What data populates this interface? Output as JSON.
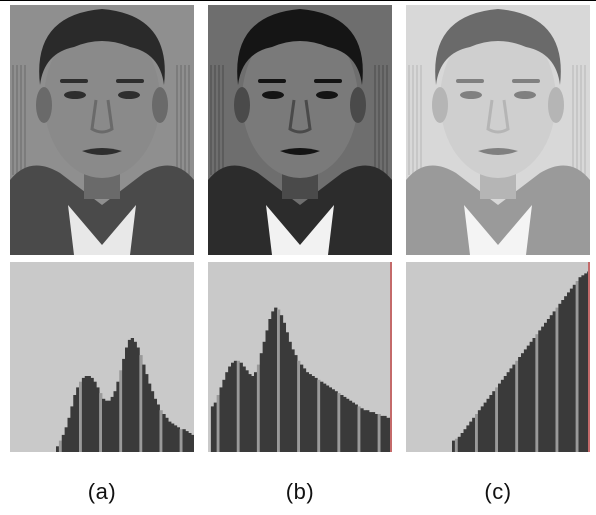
{
  "figure": {
    "panels": [
      {
        "caption": "(a)",
        "photo_tone": {
          "background": "#8f8f8f",
          "hair": "#2a2a2a",
          "skin": "#8a8a8a",
          "skin_shadow": "#6a6a6a",
          "jacket": "#4a4a4a",
          "shirt": "#e8e8e8",
          "features": "#2e2e2e"
        },
        "histogram": {
          "background": "#c9c9c9",
          "bar_color": "#3a3a3a",
          "highlight_color": "#9a9a9a",
          "edge_color": null
        }
      },
      {
        "caption": "(b)",
        "photo_tone": {
          "background": "#6e6e6e",
          "hair": "#151515",
          "skin": "#7a7a7a",
          "skin_shadow": "#4a4a4a",
          "jacket": "#2c2c2c",
          "shirt": "#f2f2f2",
          "features": "#141414"
        },
        "histogram": {
          "background": "#c9c9c9",
          "bar_color": "#3a3a3a",
          "highlight_color": "#9a9a9a",
          "edge_color": "#c46a6a"
        }
      },
      {
        "caption": "(c)",
        "photo_tone": {
          "background": "#d8d8d8",
          "hair": "#6a6a6a",
          "skin": "#cfcfcf",
          "skin_shadow": "#b5b5b5",
          "jacket": "#9a9a9a",
          "shirt": "#f4f4f4",
          "features": "#808080"
        },
        "histogram": {
          "background": "#c9c9c9",
          "bar_color": "#3a3a3a",
          "highlight_color": "#9a9a9a",
          "edge_color": "#c46a6a"
        }
      }
    ]
  },
  "chart_data": [
    {
      "type": "bar",
      "values": [
        0.0,
        0.0,
        0.0,
        0.0,
        0.0,
        0.0,
        0.0,
        0.0,
        0.0,
        0.0,
        0.0,
        0.0,
        0.0,
        0.0,
        0.0,
        0.0,
        0.03,
        0.06,
        0.09,
        0.13,
        0.18,
        0.24,
        0.3,
        0.34,
        0.37,
        0.39,
        0.4,
        0.4,
        0.39,
        0.37,
        0.34,
        0.31,
        0.28,
        0.27,
        0.27,
        0.29,
        0.32,
        0.37,
        0.43,
        0.49,
        0.55,
        0.59,
        0.6,
        0.58,
        0.55,
        0.51,
        0.46,
        0.41,
        0.36,
        0.32,
        0.28,
        0.25,
        0.22,
        0.2,
        0.18,
        0.16,
        0.15,
        0.14,
        0.13,
        0.12,
        0.12,
        0.11,
        0.1,
        0.09
      ]
    },
    {
      "type": "bar",
      "values": [
        0.0,
        0.24,
        0.26,
        0.3,
        0.34,
        0.38,
        0.42,
        0.45,
        0.47,
        0.48,
        0.48,
        0.47,
        0.45,
        0.43,
        0.41,
        0.4,
        0.42,
        0.46,
        0.52,
        0.58,
        0.64,
        0.7,
        0.74,
        0.76,
        0.75,
        0.72,
        0.68,
        0.63,
        0.58,
        0.54,
        0.51,
        0.48,
        0.46,
        0.44,
        0.42,
        0.41,
        0.4,
        0.39,
        0.38,
        0.37,
        0.36,
        0.35,
        0.34,
        0.33,
        0.32,
        0.31,
        0.3,
        0.29,
        0.28,
        0.27,
        0.26,
        0.25,
        0.24,
        0.23,
        0.22,
        0.22,
        0.21,
        0.21,
        0.2,
        0.2,
        0.19,
        0.19,
        0.18,
        0.18
      ]
    },
    {
      "type": "bar",
      "values": [
        0.0,
        0.0,
        0.0,
        0.0,
        0.0,
        0.0,
        0.0,
        0.0,
        0.0,
        0.0,
        0.0,
        0.0,
        0.0,
        0.0,
        0.0,
        0.0,
        0.06,
        0.07,
        0.08,
        0.1,
        0.12,
        0.14,
        0.16,
        0.18,
        0.2,
        0.22,
        0.24,
        0.26,
        0.28,
        0.3,
        0.32,
        0.34,
        0.36,
        0.38,
        0.4,
        0.42,
        0.44,
        0.46,
        0.48,
        0.5,
        0.52,
        0.54,
        0.56,
        0.58,
        0.6,
        0.62,
        0.64,
        0.66,
        0.68,
        0.7,
        0.72,
        0.74,
        0.76,
        0.78,
        0.8,
        0.82,
        0.84,
        0.86,
        0.88,
        0.9,
        0.92,
        0.93,
        0.94,
        0.95
      ]
    }
  ]
}
